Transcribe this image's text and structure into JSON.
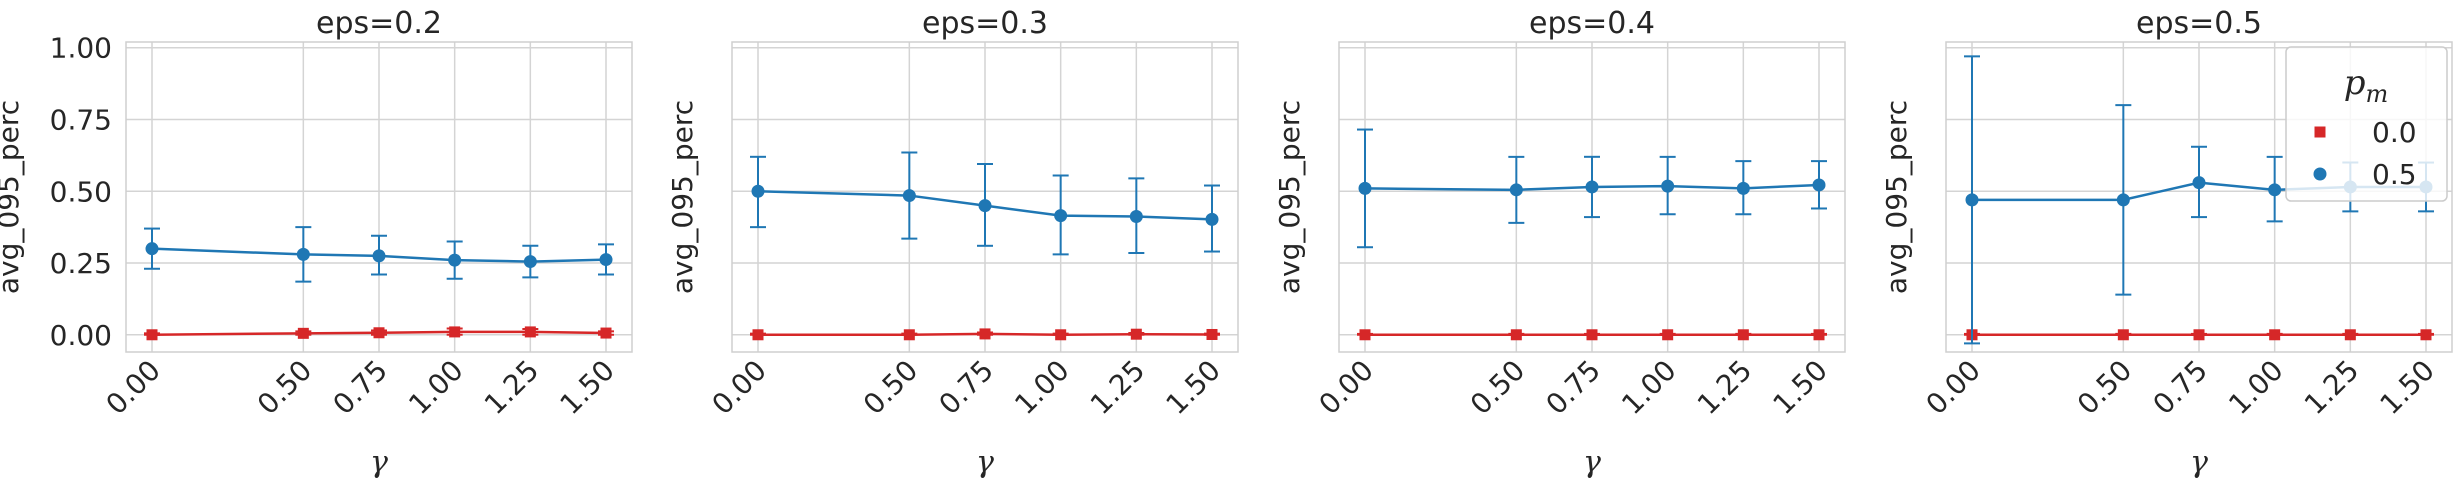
{
  "chart_data": [
    {
      "type": "line",
      "title": "eps=0.2",
      "xlabel": "γ",
      "ylabel": "avg_095_perc",
      "x": [
        0.0,
        0.5,
        0.75,
        1.0,
        1.25,
        1.5
      ],
      "x_tick_labels": [
        "0.00",
        "0.50",
        "0.75",
        "1.00",
        "1.25",
        "1.50"
      ],
      "ylim": [
        -0.06,
        1.02
      ],
      "y_ticks": [
        0.0,
        0.25,
        0.5,
        0.75,
        1.0
      ],
      "y_tick_labels": [
        "0.00",
        "0.25",
        "0.50",
        "0.75",
        "1.00"
      ],
      "grid": true,
      "series": [
        {
          "color": "#d62728",
          "marker": "square",
          "values": [
            0.0,
            0.005,
            0.007,
            0.01,
            0.01,
            0.006
          ],
          "err_low": [
            0.0,
            0.0,
            0.0,
            0.0,
            0.0,
            0.0
          ],
          "err_high": [
            0.005,
            0.012,
            0.015,
            0.022,
            0.02,
            0.012
          ]
        },
        {
          "color": "#1f77b4",
          "marker": "circle",
          "values": [
            0.3,
            0.28,
            0.275,
            0.26,
            0.255,
            0.262
          ],
          "err_low": [
            0.23,
            0.185,
            0.21,
            0.195,
            0.2,
            0.21
          ],
          "err_high": [
            0.37,
            0.375,
            0.345,
            0.325,
            0.31,
            0.315
          ]
        }
      ]
    },
    {
      "type": "line",
      "title": "eps=0.3",
      "xlabel": "γ",
      "ylabel": "avg_095_perc",
      "x": [
        0.0,
        0.5,
        0.75,
        1.0,
        1.25,
        1.5
      ],
      "x_tick_labels": [
        "0.00",
        "0.50",
        "0.75",
        "1.00",
        "1.25",
        "1.50"
      ],
      "ylim": [
        -0.06,
        1.02
      ],
      "y_ticks": [
        0.0,
        0.25,
        0.5,
        0.75,
        1.0
      ],
      "y_tick_labels": [],
      "grid": true,
      "series": [
        {
          "color": "#d62728",
          "marker": "square",
          "values": [
            0.0,
            0.0,
            0.003,
            0.0,
            0.002,
            0.001
          ],
          "err_low": [
            0.0,
            0.0,
            0.0,
            0.0,
            0.0,
            0.0
          ],
          "err_high": [
            0.004,
            0.004,
            0.008,
            0.004,
            0.006,
            0.004
          ]
        },
        {
          "color": "#1f77b4",
          "marker": "circle",
          "values": [
            0.5,
            0.485,
            0.45,
            0.415,
            0.412,
            0.402
          ],
          "err_low": [
            0.375,
            0.335,
            0.31,
            0.28,
            0.285,
            0.29
          ],
          "err_high": [
            0.62,
            0.635,
            0.595,
            0.555,
            0.545,
            0.52
          ]
        }
      ]
    },
    {
      "type": "line",
      "title": "eps=0.4",
      "xlabel": "γ",
      "ylabel": "avg_095_perc",
      "x": [
        0.0,
        0.5,
        0.75,
        1.0,
        1.25,
        1.5
      ],
      "x_tick_labels": [
        "0.00",
        "0.50",
        "0.75",
        "1.00",
        "1.25",
        "1.50"
      ],
      "ylim": [
        -0.06,
        1.02
      ],
      "y_ticks": [
        0.0,
        0.25,
        0.5,
        0.75,
        1.0
      ],
      "y_tick_labels": [],
      "grid": true,
      "series": [
        {
          "color": "#d62728",
          "marker": "square",
          "values": [
            0.0,
            0.0,
            0.0,
            0.0,
            0.0,
            0.0
          ],
          "err_low": [
            0.0,
            0.0,
            0.0,
            0.0,
            0.0,
            0.0
          ],
          "err_high": [
            0.003,
            0.003,
            0.003,
            0.003,
            0.003,
            0.003
          ]
        },
        {
          "color": "#1f77b4",
          "marker": "circle",
          "values": [
            0.51,
            0.505,
            0.515,
            0.518,
            0.51,
            0.522
          ],
          "err_low": [
            0.305,
            0.39,
            0.41,
            0.42,
            0.42,
            0.44
          ],
          "err_high": [
            0.715,
            0.62,
            0.62,
            0.62,
            0.605,
            0.605
          ]
        }
      ]
    },
    {
      "type": "line",
      "title": "eps=0.5",
      "xlabel": "γ",
      "ylabel": "avg_095_perc",
      "x": [
        0.0,
        0.5,
        0.75,
        1.0,
        1.25,
        1.5
      ],
      "x_tick_labels": [
        "0.00",
        "0.50",
        "0.75",
        "1.00",
        "1.25",
        "1.50"
      ],
      "ylim": [
        -0.06,
        1.02
      ],
      "y_ticks": [
        0.0,
        0.25,
        0.5,
        0.75,
        1.0
      ],
      "y_tick_labels": [],
      "grid": true,
      "series": [
        {
          "color": "#d62728",
          "marker": "square",
          "values": [
            0.0,
            0.0,
            0.0,
            0.0,
            0.0,
            0.0
          ],
          "err_low": [
            0.0,
            0.0,
            0.0,
            0.0,
            0.0,
            0.0
          ],
          "err_high": [
            0.003,
            0.003,
            0.003,
            0.003,
            0.003,
            0.003
          ]
        },
        {
          "color": "#1f77b4",
          "marker": "circle",
          "values": [
            0.47,
            0.47,
            0.53,
            0.505,
            0.515,
            0.515
          ],
          "err_low": [
            -0.03,
            0.14,
            0.41,
            0.395,
            0.43,
            0.43
          ],
          "err_high": [
            0.97,
            0.8,
            0.655,
            0.62,
            0.6,
            0.6
          ]
        }
      ]
    }
  ],
  "legend": {
    "title": "p",
    "title_subscript": "m",
    "placement": "upper-right",
    "entries": [
      {
        "label": "0.0",
        "color": "#d62728",
        "marker": "square"
      },
      {
        "label": "0.5",
        "color": "#1f77b4",
        "marker": "circle"
      }
    ]
  }
}
